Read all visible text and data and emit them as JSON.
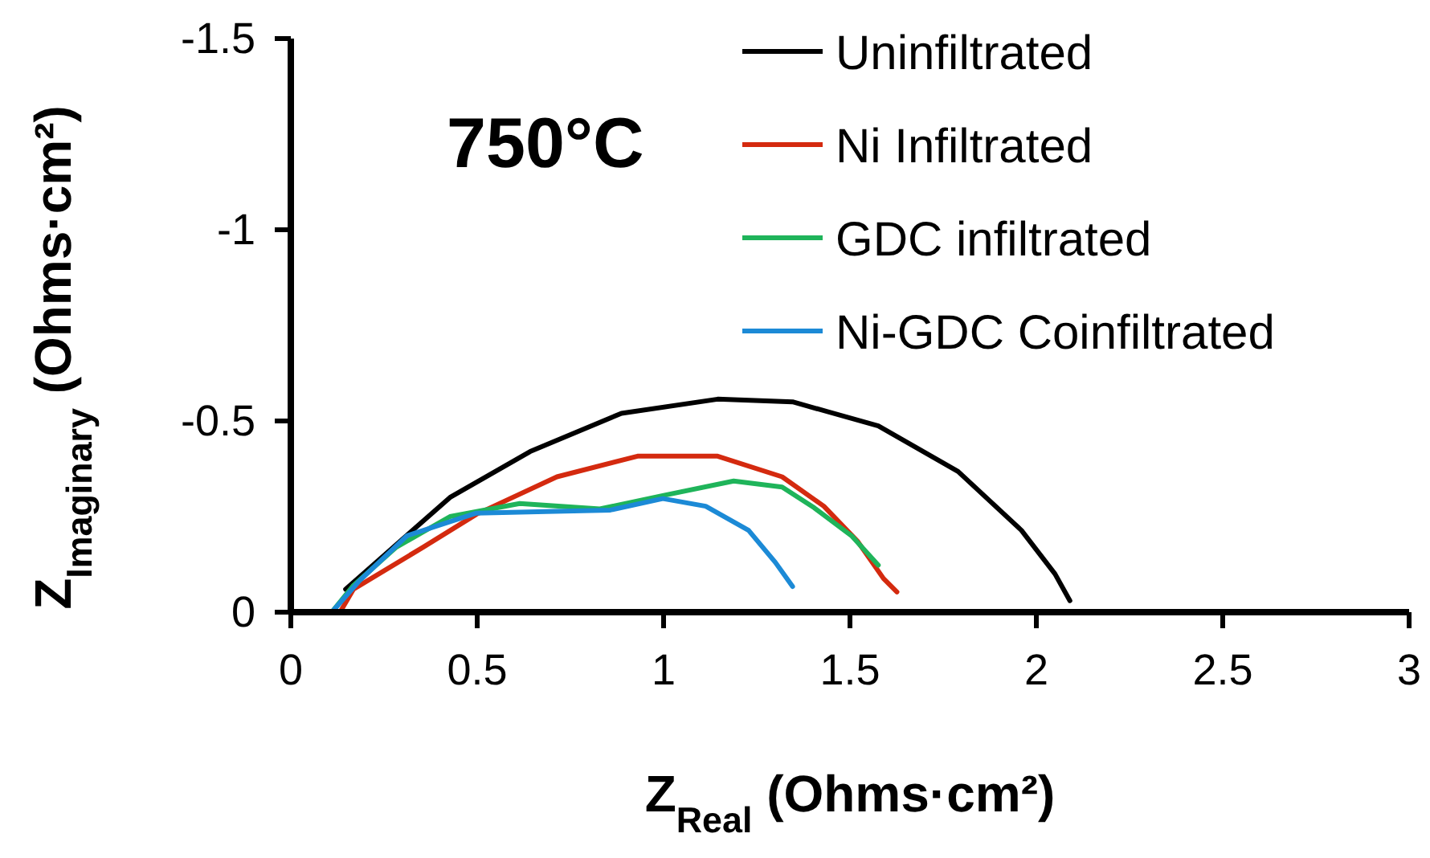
{
  "chart_data": {
    "type": "line",
    "xlabel": "Z$_{Real}$ (Ohms·cm²)",
    "ylabel": "Z$_{Imaginary}$ (Ohms·cm²)",
    "annotations": [
      "750°C"
    ],
    "xlim": [
      0,
      3
    ],
    "xticks": [
      0,
      0.5,
      1,
      1.5,
      2,
      2.5,
      3
    ],
    "ylim": [
      0,
      -1.5
    ],
    "yticks": [
      0,
      -0.5,
      -1,
      -1.5
    ],
    "grid": false,
    "legend": "top right",
    "marker": "none",
    "line_style": "solid",
    "series": [
      {
        "name": "Uninfiltrated",
        "color": "#000000",
        "x": [
          0.147,
          0.427,
          0.642,
          0.887,
          1.145,
          1.346,
          1.576,
          1.79,
          1.96,
          2.05,
          2.09
        ],
        "values": [
          -0.06,
          -0.3,
          -0.42,
          -0.52,
          -0.557,
          -0.55,
          -0.487,
          -0.368,
          -0.214,
          -0.1,
          -0.03
        ]
      },
      {
        "name": "Ni Infiltrated",
        "color": "#d42a0f",
        "x": [
          0.132,
          0.168,
          0.355,
          0.498,
          0.714,
          0.93,
          1.145,
          1.318,
          1.43,
          1.52,
          1.59,
          1.626
        ],
        "values": [
          0,
          -0.06,
          -0.17,
          -0.256,
          -0.354,
          -0.408,
          -0.408,
          -0.354,
          -0.277,
          -0.186,
          -0.088,
          -0.053
        ]
      },
      {
        "name": "GDC infiltrated",
        "color": "#1fb45a",
        "x": [
          0.11,
          0.168,
          0.283,
          0.427,
          0.614,
          0.829,
          0.998,
          1.188,
          1.318,
          1.404,
          1.504,
          1.576
        ],
        "values": [
          0,
          -0.07,
          -0.17,
          -0.25,
          -0.284,
          -0.27,
          -0.305,
          -0.343,
          -0.327,
          -0.273,
          -0.2,
          -0.123
        ]
      },
      {
        "name": "Ni-GDC Coinfiltrated",
        "color": "#1c8ad6",
        "x": [
          0.11,
          0.182,
          0.312,
          0.498,
          0.685,
          0.857,
          0.998,
          1.113,
          1.228,
          1.3,
          1.346
        ],
        "values": [
          0,
          -0.08,
          -0.2,
          -0.259,
          -0.263,
          -0.267,
          -0.297,
          -0.277,
          -0.214,
          -0.13,
          -0.067
        ]
      }
    ]
  }
}
